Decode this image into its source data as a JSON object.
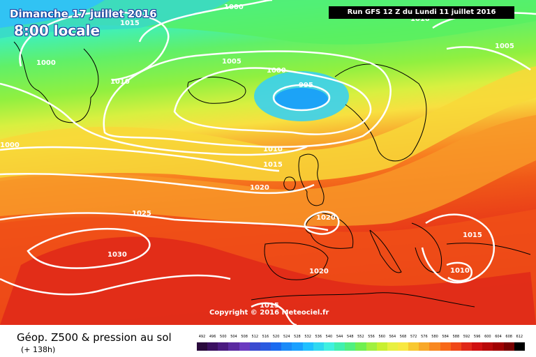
{
  "header": {
    "date": "Dimanche 17 juillet 2016",
    "time": "8:00 locale",
    "run": "Run GFS 12 Z du Lundi 11 juillet 2016"
  },
  "copyright": "Copyright © 2016 Meteociel.fr",
  "legend": {
    "title": "Géop. Z500 & pression au sol",
    "subtitle": "(+ 138h)",
    "scale_values": [
      "492",
      "496",
      "500",
      "504",
      "508",
      "512",
      "516",
      "520",
      "524",
      "528",
      "532",
      "536",
      "540",
      "544",
      "548",
      "552",
      "556",
      "560",
      "564",
      "568",
      "572",
      "576",
      "580",
      "584",
      "588",
      "592",
      "596",
      "600",
      "604",
      "608",
      "612"
    ],
    "scale_colors": [
      "#2a0a3d",
      "#3a1060",
      "#4a1a80",
      "#5a2aa0",
      "#6a3ac0",
      "#3a4ad0",
      "#2a5ae0",
      "#1a6af0",
      "#1a8af8",
      "#1aa0ff",
      "#20c0ff",
      "#30d8f0",
      "#40f0e0",
      "#40f0b0",
      "#50f080",
      "#70f050",
      "#a0f040",
      "#c8f030",
      "#e8f040",
      "#f8e840",
      "#f8c830",
      "#f8a828",
      "#f88820",
      "#f86818",
      "#f04818",
      "#e02818",
      "#d01010",
      "#b80808",
      "#a00000",
      "#780000",
      "#000000"
    ]
  },
  "isobars": {
    "labels": [
      "995",
      "1000",
      "1000",
      "1000",
      "1005",
      "1005",
      "1010",
      "1010",
      "1010",
      "1015",
      "1015",
      "1015",
      "1015",
      "1020",
      "1020",
      "1020",
      "1025",
      "1030",
      "1000",
      "1010"
    ]
  },
  "colors": {
    "isobar": "#ffffff",
    "coast": "#000000",
    "run_box_bg": "#000000",
    "title_outline": "#1a3d9c"
  }
}
